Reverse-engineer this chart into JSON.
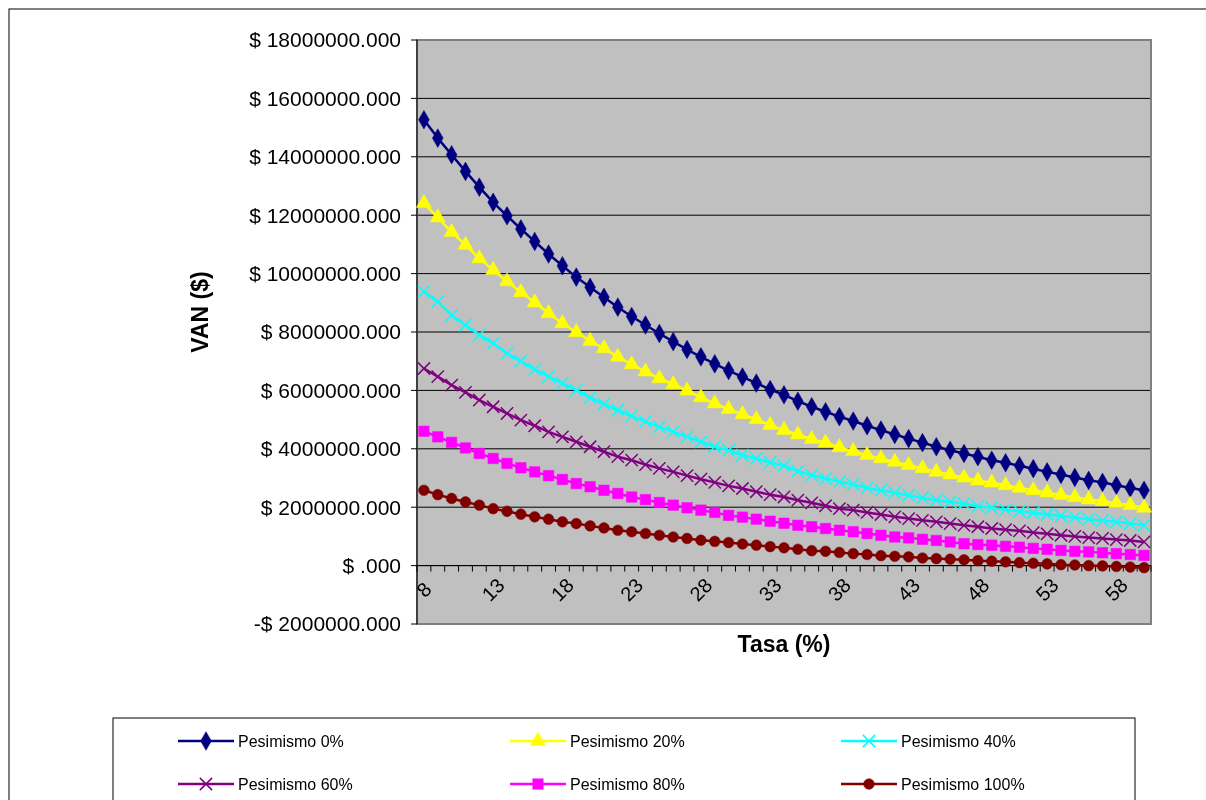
{
  "chart_data": {
    "type": "line",
    "xlabel": "Tasa (%)",
    "ylabel": "VAN ($)",
    "categories": [
      "8",
      null,
      null,
      null,
      null,
      "13",
      null,
      null,
      null,
      null,
      "18",
      null,
      null,
      null,
      null,
      "23",
      null,
      null,
      null,
      null,
      "28",
      null,
      null,
      null,
      null,
      "33",
      null,
      null,
      null,
      null,
      "38",
      null,
      null,
      null,
      null,
      "43",
      null,
      null,
      null,
      null,
      "48",
      null,
      null,
      null,
      null,
      "53",
      null,
      null,
      null,
      null,
      "58",
      null,
      null
    ],
    "ylim": [
      -2000000,
      18000000
    ],
    "yticks": [
      {
        "value": -2000000,
        "label": "-$ 2000000.000"
      },
      {
        "value": 0,
        "label": "$ .000"
      },
      {
        "value": 2000000,
        "label": "$ 2000000.000"
      },
      {
        "value": 4000000,
        "label": "$ 4000000.000"
      },
      {
        "value": 6000000,
        "label": "$ 6000000.000"
      },
      {
        "value": 8000000,
        "label": "$ 8000000.000"
      },
      {
        "value": 10000000,
        "label": "$ 10000000.000"
      },
      {
        "value": 12000000,
        "label": "$ 12000000.000"
      },
      {
        "value": 14000000,
        "label": "$ 14000000.000"
      },
      {
        "value": 16000000,
        "label": "$ 16000000.000"
      },
      {
        "value": 18000000,
        "label": "$ 18000000.000"
      }
    ],
    "grid": "y",
    "legend": "bottom",
    "series": [
      {
        "name": "Pesimismo 0%",
        "color": "#000080",
        "marker": "diamond",
        "values": [
          15270000,
          14640000,
          14070000,
          13500000,
          12960000,
          12440000,
          11980000,
          11530000,
          11100000,
          10670000,
          10270000,
          9880000,
          9530000,
          9190000,
          8850000,
          8530000,
          8240000,
          7950000,
          7670000,
          7400000,
          7150000,
          6910000,
          6680000,
          6460000,
          6250000,
          6030000,
          5850000,
          5630000,
          5440000,
          5270000,
          5100000,
          4950000,
          4790000,
          4640000,
          4490000,
          4350000,
          4210000,
          4070000,
          3950000,
          3840000,
          3730000,
          3610000,
          3520000,
          3420000,
          3320000,
          3210000,
          3120000,
          3020000,
          2920000,
          2850000,
          2750000,
          2660000,
          2580000
        ]
      },
      {
        "name": "Pesimismo 20%",
        "color": "#ffff00",
        "marker": "triangle",
        "values": [
          12410000,
          11920000,
          11420000,
          10980000,
          10520000,
          10120000,
          9730000,
          9360000,
          9010000,
          8640000,
          8300000,
          7990000,
          7690000,
          7440000,
          7150000,
          6890000,
          6640000,
          6410000,
          6210000,
          5990000,
          5760000,
          5550000,
          5360000,
          5180000,
          5010000,
          4810000,
          4640000,
          4490000,
          4330000,
          4210000,
          4050000,
          3920000,
          3780000,
          3670000,
          3550000,
          3440000,
          3330000,
          3210000,
          3120000,
          3010000,
          2910000,
          2840000,
          2750000,
          2660000,
          2580000,
          2500000,
          2410000,
          2340000,
          2260000,
          2200000,
          2130000,
          2070000,
          1980000
        ]
      },
      {
        "name": "Pesimismo 40%",
        "color": "#00ffff",
        "marker": "cross",
        "values": [
          9380000,
          9040000,
          8580000,
          8240000,
          7900000,
          7610000,
          7270000,
          7000000,
          6720000,
          6470000,
          6240000,
          6010000,
          5750000,
          5530000,
          5320000,
          5120000,
          4930000,
          4750000,
          4580000,
          4410000,
          4240000,
          4070000,
          3950000,
          3780000,
          3670000,
          3530000,
          3420000,
          3230000,
          3100000,
          2980000,
          2870000,
          2780000,
          2660000,
          2580000,
          2490000,
          2410000,
          2320000,
          2240000,
          2180000,
          2120000,
          2030000,
          1980000,
          1910000,
          1860000,
          1810000,
          1750000,
          1700000,
          1650000,
          1590000,
          1540000,
          1500000,
          1440000,
          1380000
        ]
      },
      {
        "name": "Pesimismo 60%",
        "color": "#800080",
        "marker": "cross",
        "values": [
          6750000,
          6470000,
          6180000,
          5930000,
          5670000,
          5440000,
          5210000,
          4980000,
          4790000,
          4580000,
          4410000,
          4240000,
          4070000,
          3900000,
          3730000,
          3610000,
          3460000,
          3330000,
          3210000,
          3080000,
          2960000,
          2850000,
          2730000,
          2640000,
          2530000,
          2430000,
          2350000,
          2240000,
          2150000,
          2050000,
          1950000,
          1900000,
          1820000,
          1750000,
          1670000,
          1610000,
          1550000,
          1500000,
          1440000,
          1380000,
          1330000,
          1270000,
          1230000,
          1190000,
          1130000,
          1090000,
          1040000,
          1000000,
          960000,
          930000,
          890000,
          860000,
          810000
        ]
      },
      {
        "name": "Pesimismo 80%",
        "color": "#ff00ff",
        "marker": "square",
        "values": [
          4600000,
          4410000,
          4220000,
          4030000,
          3840000,
          3670000,
          3500000,
          3350000,
          3210000,
          3080000,
          2950000,
          2810000,
          2700000,
          2580000,
          2470000,
          2350000,
          2260000,
          2160000,
          2070000,
          1980000,
          1900000,
          1820000,
          1720000,
          1660000,
          1590000,
          1520000,
          1450000,
          1380000,
          1330000,
          1270000,
          1210000,
          1160000,
          1100000,
          1040000,
          980000,
          950000,
          900000,
          860000,
          810000,
          750000,
          720000,
          700000,
          660000,
          630000,
          590000,
          560000,
          520000,
          490000,
          470000,
          440000,
          410000,
          380000,
          350000
        ]
      },
      {
        "name": "Pesimismo 100%",
        "color": "#800000",
        "marker": "circle",
        "values": [
          2580000,
          2430000,
          2300000,
          2180000,
          2070000,
          1950000,
          1860000,
          1760000,
          1670000,
          1590000,
          1500000,
          1440000,
          1360000,
          1290000,
          1210000,
          1160000,
          1100000,
          1040000,
          980000,
          930000,
          870000,
          830000,
          790000,
          740000,
          700000,
          650000,
          610000,
          560000,
          510000,
          490000,
          450000,
          410000,
          380000,
          340000,
          320000,
          300000,
          260000,
          240000,
          220000,
          200000,
          170000,
          150000,
          130000,
          100000,
          80000,
          60000,
          30000,
          20000,
          0,
          -10000,
          -30000,
          -50000,
          -70000
        ]
      }
    ]
  }
}
